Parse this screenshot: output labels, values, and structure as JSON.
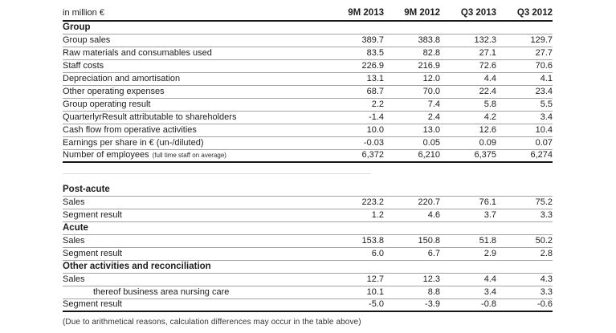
{
  "table": {
    "unit_label": "in million €",
    "columns": [
      "9M 2013",
      "9M 2012",
      "Q3 2013",
      "Q3 2012"
    ],
    "footnote": "(Due to arithmetical reasons, calculation differences may occur in the table above)"
  },
  "sections": [
    {
      "title": "Group",
      "thick_bottom": true,
      "gap_before": false,
      "rows": [
        {
          "label": "Group sales",
          "values": [
            "389.7",
            "383.8",
            "132.3",
            "129.7"
          ]
        },
        {
          "label": "Raw materials and consumables used",
          "values": [
            "83.5",
            "82.8",
            "27.1",
            "27.7"
          ]
        },
        {
          "label": "Staff costs",
          "values": [
            "226.9",
            "216.9",
            "72.6",
            "70.6"
          ]
        },
        {
          "label": "Depreciation and amortisation",
          "values": [
            "13.1",
            "12.0",
            "4.4",
            "4.1"
          ]
        },
        {
          "label": "Other operating expenses",
          "values": [
            "68.7",
            "70.0",
            "22.4",
            "23.4"
          ]
        },
        {
          "label": "Group operating result",
          "values": [
            "2.2",
            "7.4",
            "5.8",
            "5.5"
          ]
        },
        {
          "label": "QuarterlyrResult attributable to shareholders",
          "values": [
            "-1.4",
            "2.4",
            "4.2",
            "3.4"
          ]
        },
        {
          "label": "Cash flow from operative activities",
          "values": [
            "10.0",
            "13.0",
            "12.6",
            "10.4"
          ]
        },
        {
          "label": "Earnings per share in € (un-/diluted)",
          "values": [
            "-0.03",
            "0.05",
            "0.09",
            "0.07"
          ]
        },
        {
          "label": "Number of employees",
          "label_note": "(full time staff on average)",
          "values": [
            "6,372",
            "6,210",
            "6,375",
            "6,274"
          ]
        }
      ]
    },
    {
      "title": "Post-acute",
      "thick_bottom": false,
      "gap_before": true,
      "rows": [
        {
          "label": "Sales",
          "values": [
            "223.2",
            "220.7",
            "76.1",
            "75.2"
          ]
        },
        {
          "label": "Segment result",
          "values": [
            "1.2",
            "4.6",
            "3.7",
            "3.3"
          ]
        }
      ]
    },
    {
      "title": "Acute",
      "thick_bottom": false,
      "gap_before": false,
      "rows": [
        {
          "label": "Sales",
          "values": [
            "153.8",
            "150.8",
            "51.8",
            "50.2"
          ]
        },
        {
          "label": "Segment result",
          "values": [
            "6.0",
            "6.7",
            "2.9",
            "2.8"
          ]
        }
      ]
    },
    {
      "title": "Other activities and reconciliation",
      "thick_bottom": true,
      "gap_before": false,
      "rows": [
        {
          "label": "Sales",
          "values": [
            "12.7",
            "12.3",
            "4.4",
            "4.3"
          ]
        },
        {
          "label": "thereof business area nursing care",
          "indent": true,
          "values": [
            "10.1",
            "8.8",
            "3.4",
            "3.3"
          ]
        },
        {
          "label": "Segment result",
          "values": [
            "-5.0",
            "-3.9",
            "-0.8",
            "-0.6"
          ]
        }
      ]
    }
  ]
}
